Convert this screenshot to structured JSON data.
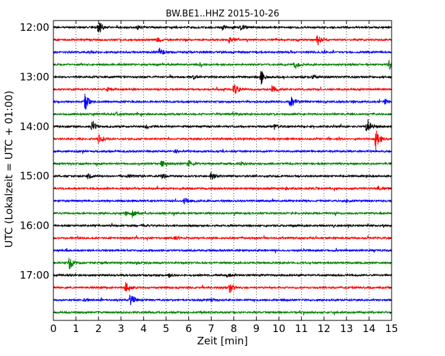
{
  "chart_data": {
    "type": "line",
    "title": "BW.BE1..HHZ 2015-10-26",
    "xlabel": "Zeit  [min]",
    "ylabel": "UTC (Lokalzeit = UTC + 01:00)",
    "xlim": [
      0,
      15
    ],
    "x_ticks": [
      "0",
      "1",
      "2",
      "3",
      "4",
      "5",
      "6",
      "7",
      "8",
      "9",
      "10",
      "11",
      "12",
      "13",
      "14",
      "15"
    ],
    "y_ticks": [
      "12:00",
      "13:00",
      "14:00",
      "15:00",
      "16:00",
      "17:00"
    ],
    "grid": "vertical dotted lines at each minute",
    "trace_interval_min": 15,
    "series_colors": [
      "#000000",
      "#ff0000",
      "#0000ff",
      "#008000"
    ],
    "traces": [
      {
        "start": "12:00",
        "color": "#000000",
        "events": [
          [
            2.0,
            1.0
          ],
          [
            8.3,
            0.5
          ],
          [
            3.7,
            0.3
          ],
          [
            7.5,
            0.25
          ]
        ]
      },
      {
        "start": "12:15",
        "color": "#ff0000",
        "events": [
          [
            4.6,
            0.3
          ],
          [
            7.8,
            0.35
          ],
          [
            11.7,
            0.7
          ]
        ]
      },
      {
        "start": "12:30",
        "color": "#0000ff",
        "events": [
          [
            4.7,
            0.5
          ],
          [
            1.5,
            0.2
          ]
        ]
      },
      {
        "start": "12:45",
        "color": "#008000",
        "events": [
          [
            10.7,
            0.6
          ],
          [
            14.9,
            0.6
          ],
          [
            6.5,
            0.2
          ]
        ]
      },
      {
        "start": "13:00",
        "color": "#000000",
        "events": [
          [
            9.2,
            1.0
          ],
          [
            6.2,
            0.3
          ],
          [
            11.5,
            0.2
          ]
        ]
      },
      {
        "start": "13:15",
        "color": "#ff0000",
        "events": [
          [
            8.0,
            1.0
          ],
          [
            9.7,
            0.5
          ],
          [
            2.4,
            0.25
          ]
        ]
      },
      {
        "start": "13:30",
        "color": "#0000ff",
        "events": [
          [
            1.4,
            1.2
          ],
          [
            10.5,
            1.0
          ],
          [
            14.7,
            0.3
          ]
        ]
      },
      {
        "start": "13:45",
        "color": "#008000",
        "events": [
          [
            8.0,
            0.25
          ],
          [
            2.8,
            0.2
          ]
        ]
      },
      {
        "start": "14:00",
        "color": "#000000",
        "events": [
          [
            1.7,
            0.6
          ],
          [
            13.9,
            1.2
          ],
          [
            9.8,
            0.3
          ],
          [
            4.1,
            0.2
          ]
        ]
      },
      {
        "start": "14:15",
        "color": "#ff0000",
        "events": [
          [
            2.0,
            0.7
          ],
          [
            14.3,
            1.5
          ]
        ]
      },
      {
        "start": "14:30",
        "color": "#0000ff",
        "events": [
          [
            5.4,
            0.2
          ]
        ]
      },
      {
        "start": "14:45",
        "color": "#008000",
        "events": [
          [
            4.8,
            0.5
          ],
          [
            6.0,
            0.5
          ],
          [
            8.3,
            0.2
          ]
        ]
      },
      {
        "start": "15:00",
        "color": "#000000",
        "events": [
          [
            1.5,
            0.4
          ],
          [
            7.0,
            0.5
          ],
          [
            4.8,
            0.2
          ],
          [
            3.3,
            0.2
          ]
        ]
      },
      {
        "start": "15:15",
        "color": "#ff0000",
        "events": [
          [
            14.4,
            0.3
          ],
          [
            10.3,
            0.2
          ]
        ]
      },
      {
        "start": "15:30",
        "color": "#0000ff",
        "events": [
          [
            5.8,
            0.4
          ],
          [
            13.0,
            0.2
          ]
        ]
      },
      {
        "start": "15:45",
        "color": "#008000",
        "events": [
          [
            3.5,
            0.6
          ],
          [
            3.2,
            0.3
          ]
        ]
      },
      {
        "start": "16:00",
        "color": "#000000",
        "events": [
          [
            3.9,
            0.2
          ]
        ]
      },
      {
        "start": "16:15",
        "color": "#ff0000",
        "events": [
          [
            5.4,
            0.2
          ]
        ]
      },
      {
        "start": "16:30",
        "color": "#0000ff",
        "events": []
      },
      {
        "start": "16:45",
        "color": "#008000",
        "events": [
          [
            0.7,
            0.9
          ],
          [
            3.7,
            0.2
          ]
        ]
      },
      {
        "start": "17:00",
        "color": "#000000",
        "events": [
          [
            5.1,
            0.3
          ],
          [
            7.7,
            0.2
          ]
        ]
      },
      {
        "start": "17:15",
        "color": "#ff0000",
        "events": [
          [
            3.2,
            0.9
          ],
          [
            7.8,
            0.8
          ]
        ]
      },
      {
        "start": "17:30",
        "color": "#0000ff",
        "events": [
          [
            3.4,
            0.9
          ],
          [
            1.4,
            0.2
          ],
          [
            7.0,
            0.2
          ]
        ]
      },
      {
        "start": "17:45",
        "color": "#008000",
        "events": []
      }
    ]
  }
}
